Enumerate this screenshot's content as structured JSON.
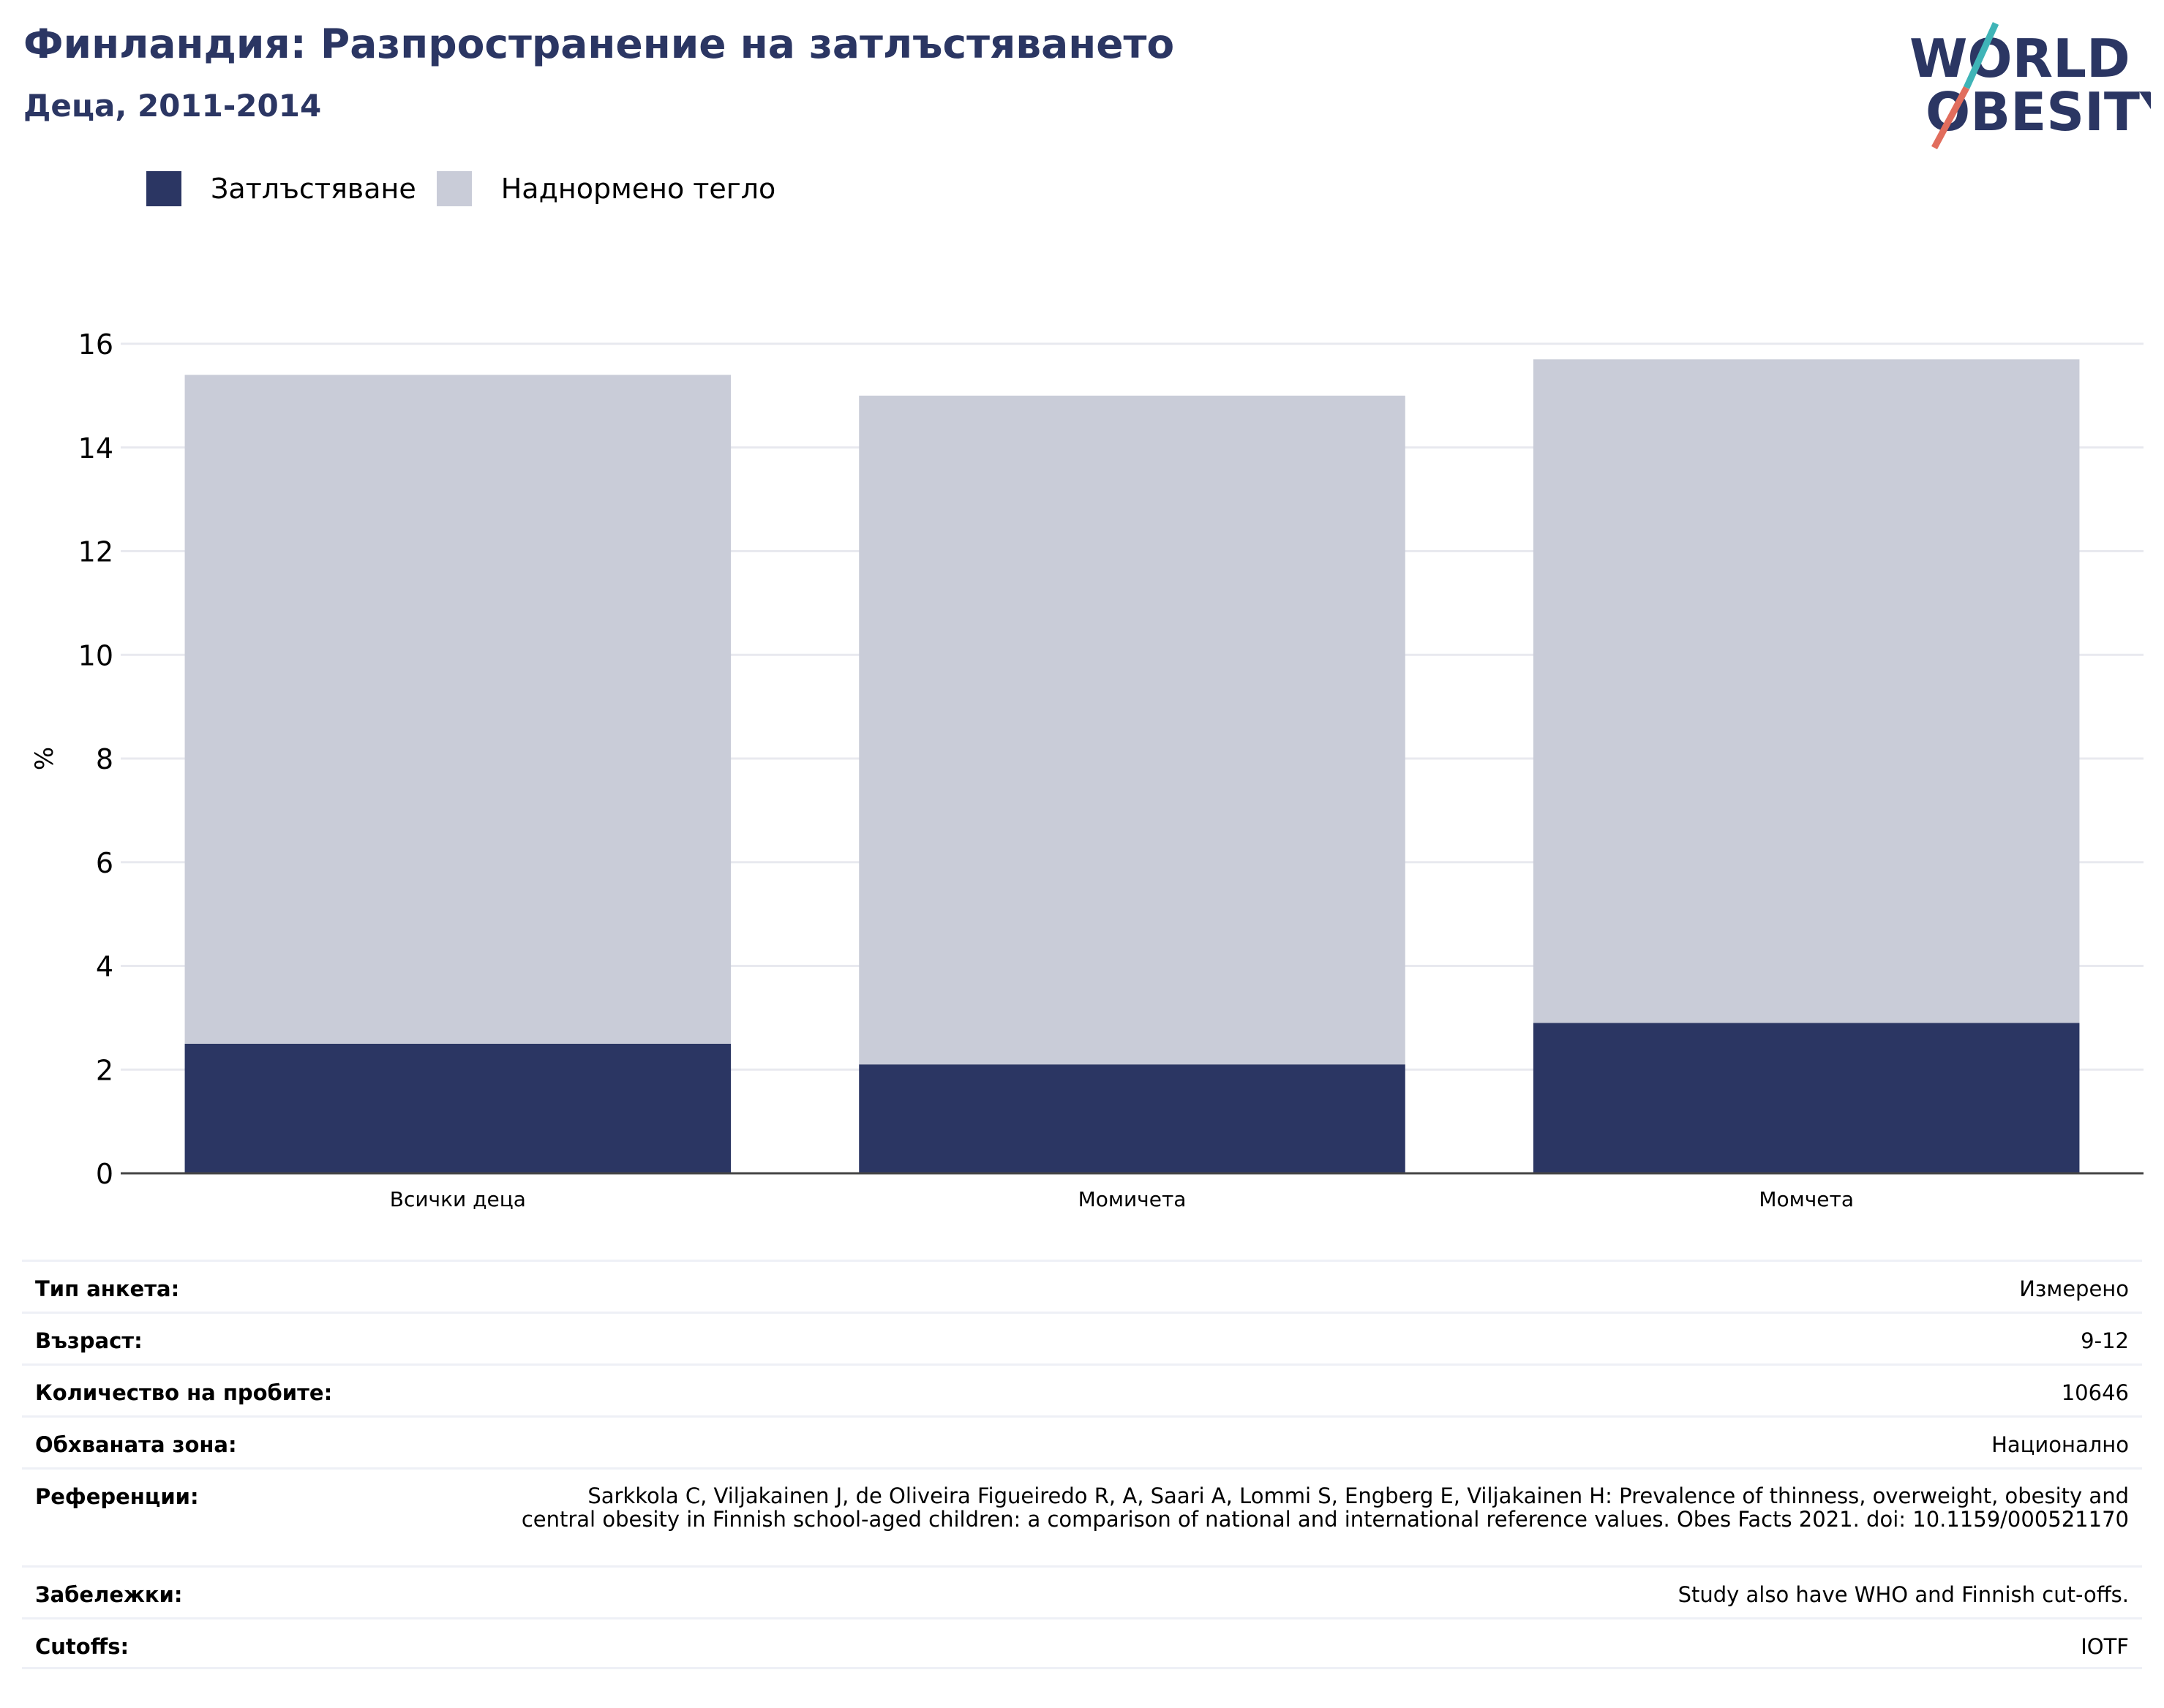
{
  "header": {
    "title": "Финландия: Разпространение на затлъстяването",
    "subtitle": "Деца, 2011-2014"
  },
  "logo": {
    "line1": "WORLD",
    "line2": "OBESITY"
  },
  "colors": {
    "obesity": "#2b3663",
    "overweight": "#c9ccd8",
    "title": "#2b3663",
    "logo_teal": "#3fb4b7",
    "logo_coral": "#e16d5d"
  },
  "chart_data": {
    "type": "bar",
    "stacked": true,
    "categories": [
      "Всички деца",
      "Момичета",
      "Момчета"
    ],
    "series": [
      {
        "name": "Затлъстяване",
        "values": [
          2.5,
          2.1,
          2.9
        ]
      },
      {
        "name": "Наднормено тегло",
        "values": [
          12.9,
          12.9,
          12.8
        ]
      }
    ],
    "ylabel": "%",
    "ylim": [
      0,
      16
    ],
    "yticks": [
      0,
      2,
      4,
      6,
      8,
      10,
      12,
      14,
      16
    ],
    "grid": true,
    "legend": "top-left"
  },
  "details": [
    {
      "label": "Тип анкета:",
      "value": "Измерено"
    },
    {
      "label": "Възраст:",
      "value": "9-12"
    },
    {
      "label": "Количество на пробите:",
      "value": "10646"
    },
    {
      "label": "Обхваната зона:",
      "value": "Национално"
    },
    {
      "label": "Референции:",
      "value": "Sarkkola C, Viljakainen J, de Oliveira Figueiredo R, A, Saari A, Lommi S, Engberg E, Viljakainen H: Prevalence of thinness, overweight, obesity and central obesity in Finnish school-aged children: a comparison of national and international reference values. Obes Facts 2021. doi: 10.1159/000521170"
    },
    {
      "label": "Забележки:",
      "value": "Study also have WHO and Finnish cut-offs."
    },
    {
      "label": "Cutoffs:",
      "value": "IOTF"
    }
  ]
}
